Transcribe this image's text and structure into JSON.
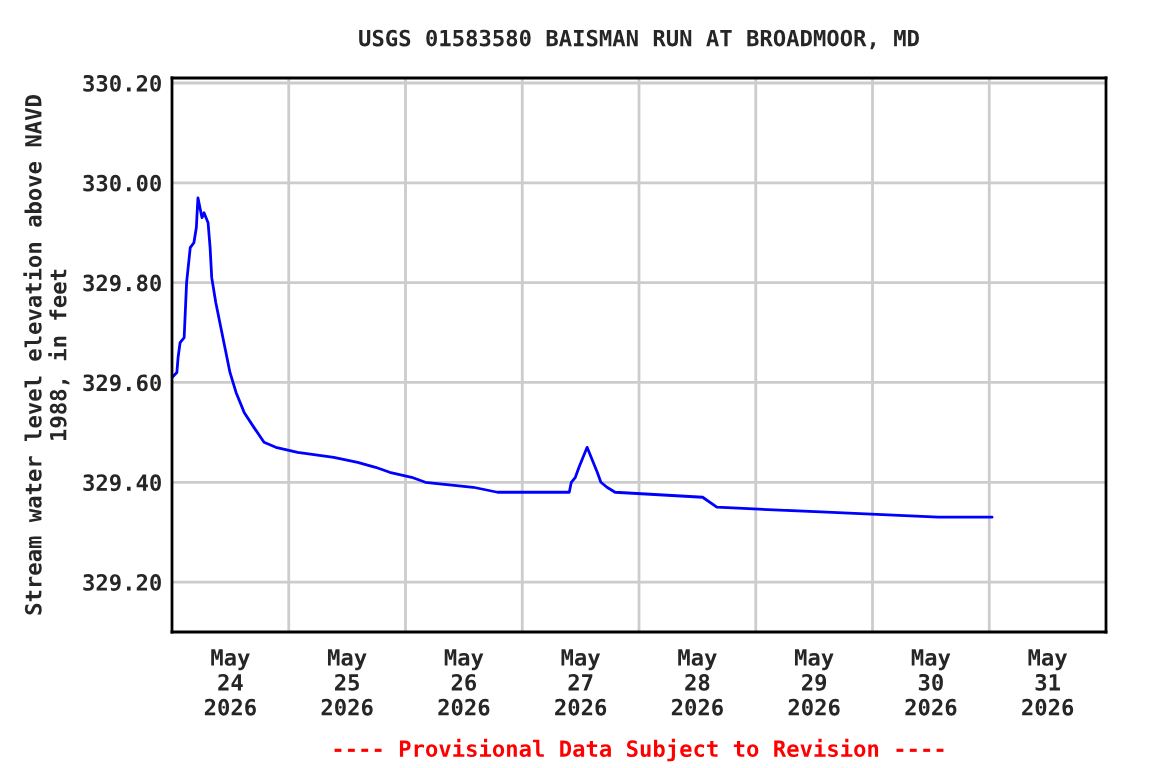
{
  "chart_data": {
    "type": "line",
    "title": "USGS 01583580 BAISMAN RUN AT BROADMOOR, MD",
    "ylabel": "Stream water level elevation above NAVD\n1988, in feet",
    "annotations": [
      "---- Provisional Data Subject to Revision ----"
    ],
    "x": [
      "2026-05-24T00:00",
      "2026-05-24T01:00",
      "2026-05-24T01:15",
      "2026-05-24T01:40",
      "2026-05-24T02:30",
      "2026-05-24T03:00",
      "2026-05-24T03:45",
      "2026-05-24T04:30",
      "2026-05-24T05:00",
      "2026-05-24T05:20",
      "2026-05-24T05:45",
      "2026-05-24T06:10",
      "2026-05-24T06:35",
      "2026-05-24T07:25",
      "2026-05-24T07:50",
      "2026-05-24T08:10",
      "2026-05-24T09:00",
      "2026-05-24T09:50",
      "2026-05-24T10:40",
      "2026-05-24T11:55",
      "2026-05-24T13:10",
      "2026-05-24T14:50",
      "2026-05-24T16:50",
      "2026-05-24T18:55",
      "2026-05-24T21:20",
      "2026-05-25T01:50",
      "2026-05-25T09:15",
      "2026-05-25T14:10",
      "2026-05-25T17:50",
      "2026-05-25T20:45",
      "2026-05-26T01:15",
      "2026-05-26T04:05",
      "2026-05-26T13:55",
      "2026-05-26T18:55",
      "2026-05-27T09:40",
      "2026-05-27T10:05",
      "2026-05-27T10:55",
      "2026-05-27T11:40",
      "2026-05-27T12:30",
      "2026-05-27T13:20",
      "2026-05-27T13:45",
      "2026-05-27T14:35",
      "2026-05-27T15:25",
      "2026-05-27T16:10",
      "2026-05-27T17:25",
      "2026-05-27T19:05",
      "2026-05-28T13:05",
      "2026-05-28T16:00",
      "2026-05-29T14:35",
      "2026-05-30T13:30",
      "2026-05-31T00:35"
    ],
    "series": [
      {
        "color": "#0000ff",
        "values": [
          329.61,
          329.62,
          329.65,
          329.68,
          329.69,
          329.8,
          329.87,
          329.88,
          329.91,
          329.97,
          329.95,
          329.93,
          329.94,
          329.92,
          329.87,
          329.81,
          329.76,
          329.72,
          329.68,
          329.62,
          329.58,
          329.54,
          329.51,
          329.48,
          329.47,
          329.46,
          329.45,
          329.44,
          329.43,
          329.42,
          329.41,
          329.4,
          329.39,
          329.38,
          329.38,
          329.4,
          329.41,
          329.43,
          329.45,
          329.47,
          329.46,
          329.44,
          329.42,
          329.4,
          329.39,
          329.38,
          329.37,
          329.35,
          329.34,
          329.33,
          329.33
        ]
      }
    ],
    "xlim": [
      "2026-05-24T00:00",
      "2026-06-01T00:00"
    ],
    "xticks": [
      {
        "value": "2026-05-24T12:00",
        "label": "May\n24\n2026"
      },
      {
        "value": "2026-05-25T12:00",
        "label": "May\n25\n2026"
      },
      {
        "value": "2026-05-26T12:00",
        "label": "May\n26\n2026"
      },
      {
        "value": "2026-05-27T12:00",
        "label": "May\n27\n2026"
      },
      {
        "value": "2026-05-28T12:00",
        "label": "May\n28\n2026"
      },
      {
        "value": "2026-05-29T12:00",
        "label": "May\n29\n2026"
      },
      {
        "value": "2026-05-30T12:00",
        "label": "May\n30\n2026"
      },
      {
        "value": "2026-05-31T12:00",
        "label": "May\n31\n2026"
      },
      {
        "value": "2026-05-25T00:00",
        "label": null
      },
      {
        "value": "2026-05-26T00:00",
        "label": null
      },
      {
        "value": "2026-05-27T00:00",
        "label": null
      },
      {
        "value": "2026-05-28T00:00",
        "label": null
      },
      {
        "value": "2026-05-29T00:00",
        "label": null
      },
      {
        "value": "2026-05-30T00:00",
        "label": null
      },
      {
        "value": "2026-05-31T00:00",
        "label": null
      }
    ],
    "ylim": [
      329.1,
      330.21
    ],
    "yticks": [
      {
        "value": 329.2,
        "label": "329.20"
      },
      {
        "value": 329.4,
        "label": "329.40"
      },
      {
        "value": 329.6,
        "label": "329.60"
      },
      {
        "value": 329.8,
        "label": "329.80"
      },
      {
        "value": 330.0,
        "label": "330.00"
      },
      {
        "value": 330.2,
        "label": "330.20"
      }
    ],
    "grid": true,
    "legend": false
  }
}
